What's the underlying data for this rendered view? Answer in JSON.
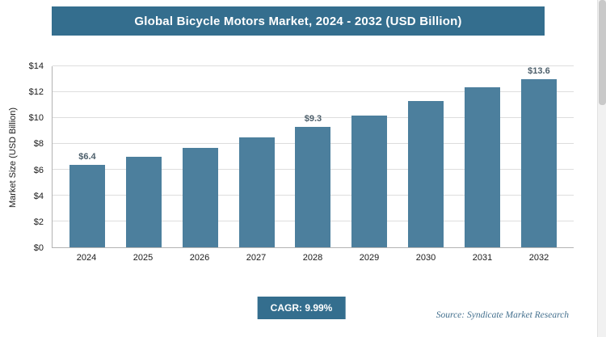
{
  "header": {
    "title": "Global Bicycle Motors Market, 2024 - 2032 (USD Billion)"
  },
  "chart_data": {
    "type": "bar",
    "title": "Global Bicycle Motors Market, 2024 - 2032 (USD Billion)",
    "categories": [
      "2024",
      "2025",
      "2026",
      "2027",
      "2028",
      "2029",
      "2030",
      "2031",
      "2032"
    ],
    "values": [
      6.4,
      7.0,
      7.7,
      8.5,
      9.3,
      10.2,
      11.3,
      12.4,
      13.6
    ],
    "bar_labels": [
      "$6.4",
      "",
      "",
      "",
      "$9.3",
      "",
      "",
      "",
      "$13.6"
    ],
    "xlabel": "",
    "ylabel": "Market Size (USD Billion)",
    "ylim": [
      0,
      14
    ],
    "ytick_labels": [
      "$0",
      "$2",
      "$4",
      "$6",
      "$8",
      "$10",
      "$12",
      "$14"
    ],
    "grid": true,
    "legend": "none",
    "bar_color": "#4C7F9D"
  },
  "footer": {
    "cagr_label": "CAGR: 9.99%",
    "source": "Source: Syndicate Market Research"
  },
  "colors": {
    "banner": "#346E8E",
    "bar": "#4C7F9D",
    "badge": "#346E8E",
    "gridline": "#dddddd",
    "source_text": "#44708e"
  }
}
